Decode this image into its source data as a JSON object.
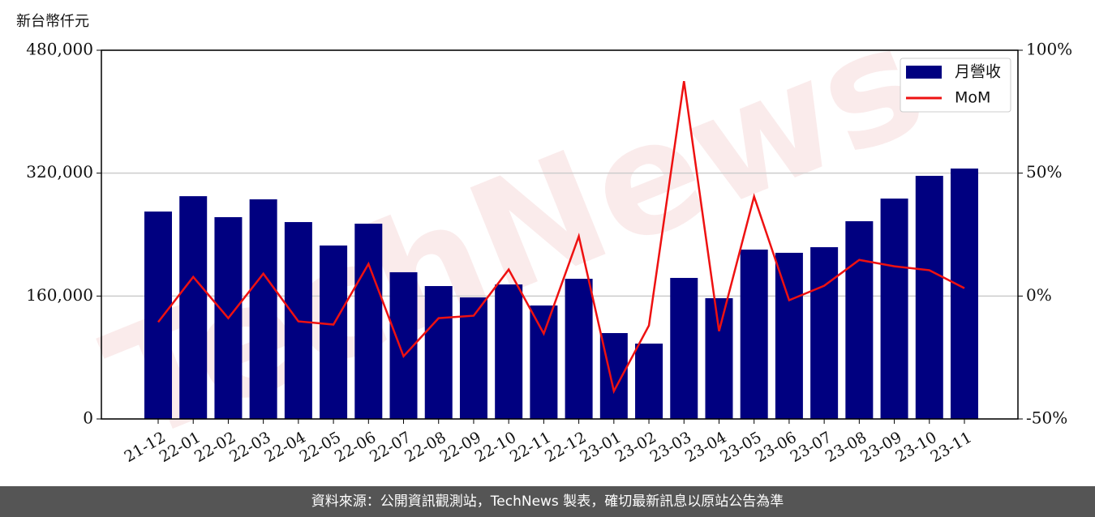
{
  "chart_data": {
    "type": "bar",
    "y_label": "新台幣仟元",
    "watermark": "TechNews",
    "source": "資料來源：公開資訊觀測站，TechNews 製表，確切最新訊息以原站公告為準",
    "categories": [
      "21-12",
      "22-01",
      "22-02",
      "22-03",
      "22-04",
      "22-05",
      "22-06",
      "22-07",
      "22-08",
      "22-09",
      "22-10",
      "22-11",
      "22-12",
      "23-01",
      "23-02",
      "23-03",
      "23-04",
      "23-05",
      "23-06",
      "23-07",
      "23-08",
      "23-09",
      "23-10",
      "23-11"
    ],
    "series": [
      {
        "name": "月營收",
        "type": "bar",
        "color": "#000080",
        "values": [
          270000,
          290000,
          262700,
          285900,
          256300,
          225800,
          254200,
          191000,
          173000,
          158200,
          175100,
          147700,
          182500,
          111800,
          98100,
          183600,
          157200,
          220500,
          216300,
          223600,
          257400,
          286900,
          316500,
          326000
        ]
      },
      {
        "name": "MoM",
        "type": "line",
        "axis": "y2",
        "color": "#ee1111",
        "values": [
          -10.6,
          7.8,
          -9.0,
          9.1,
          -10.3,
          -11.6,
          13.1,
          -24.5,
          -9.0,
          -8.0,
          10.8,
          -15.3,
          24.3,
          -38.7,
          -12.0,
          87.4,
          -14.3,
          40.5,
          -1.7,
          4.2,
          14.7,
          12.1,
          10.5,
          3.2
        ]
      }
    ],
    "ylim": [
      0,
      480000
    ],
    "yticks": [
      {
        "value": 0,
        "label": "0"
      },
      {
        "value": 160000,
        "label": "160,000"
      },
      {
        "value": 320000,
        "label": "320,000"
      },
      {
        "value": 480000,
        "label": "480,000"
      }
    ],
    "y2lim": [
      -50,
      100
    ],
    "y2ticks": [
      {
        "value": -50,
        "label": "-50%"
      },
      {
        "value": 0,
        "label": "0%"
      },
      {
        "value": 50,
        "label": "50%"
      },
      {
        "value": 100,
        "label": "100%"
      }
    ],
    "grid": true,
    "legend": "upper right"
  }
}
